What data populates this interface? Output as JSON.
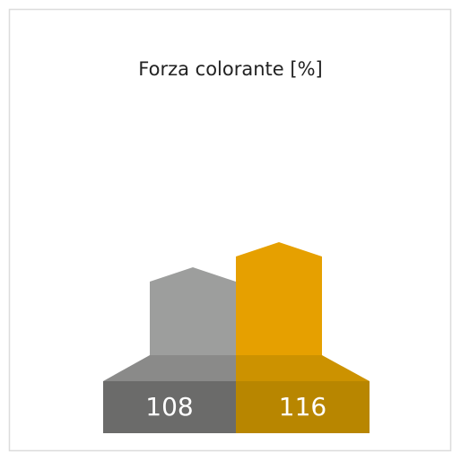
{
  "chart_data": {
    "type": "bar",
    "title": "Forza colorante [%]",
    "values": [
      108,
      116
    ],
    "colors": [
      "#9d9e9d",
      "#e6a000"
    ],
    "shoulder_colors": [
      "#8a8a89",
      "#cc9200"
    ],
    "base_colors": [
      "#6b6b6a",
      "#b88600"
    ]
  }
}
